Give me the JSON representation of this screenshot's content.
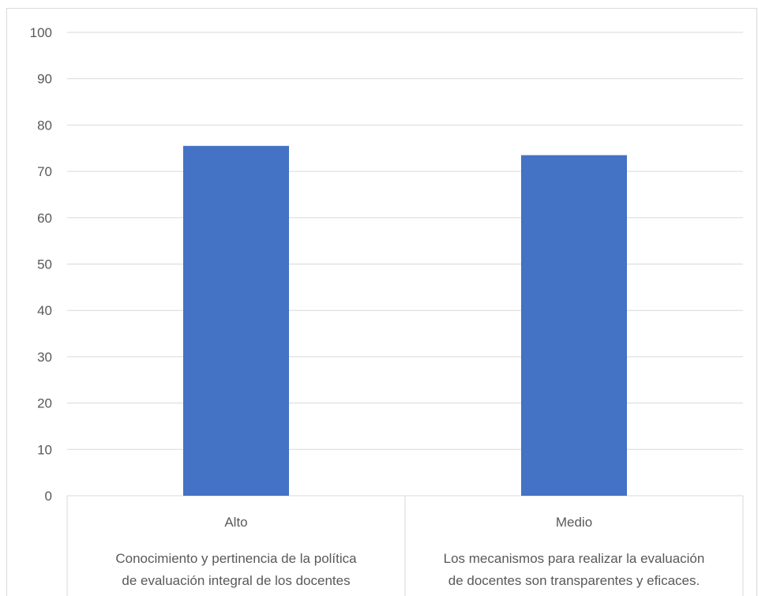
{
  "chart_data": {
    "type": "bar",
    "title": "",
    "xlabel": "",
    "ylabel": "",
    "ylim": [
      0,
      100
    ],
    "yticks": [
      0,
      10,
      20,
      30,
      40,
      50,
      60,
      70,
      80,
      90,
      100
    ],
    "grid": true,
    "legend": "none",
    "bar_color": "#4472C4",
    "categories": [
      {
        "level1": "Alto",
        "level2_line1": "Conocimiento y pertinencia de la política",
        "level2_line2": "de evaluación integral de los docentes"
      },
      {
        "level1": "Medio",
        "level2_line1": "Los mecanismos para realizar la evaluación",
        "level2_line2": "de docentes son transparentes y eficaces."
      }
    ],
    "values": [
      75.5,
      73.5
    ]
  }
}
